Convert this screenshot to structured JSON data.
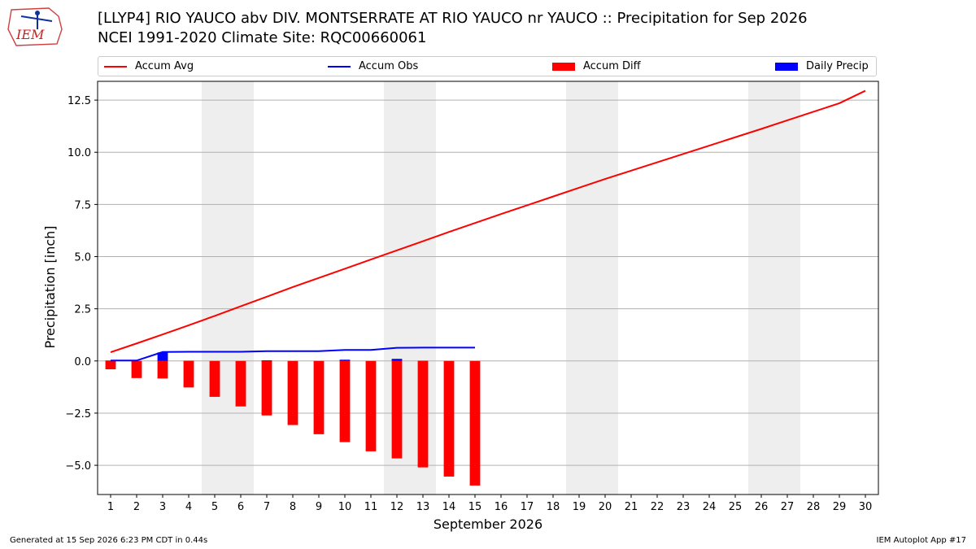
{
  "title_line1": "[LLYP4] RIO YAUCO abv DIV. MONTSERRATE  AT RIO YAUCO nr YAUCO :: Precipitation for Sep 2026",
  "title_line2": "NCEI 1991-2020 Climate Site: RQC00660061",
  "logo_text": "IEM",
  "footer_left": "Generated at 15 Sep 2026 6:23 PM CDT in 0.44s",
  "footer_right": "IEM Autoplot App #17",
  "chart_data": {
    "type": "bar",
    "xlabel": "September 2026",
    "ylabel": "Precipitation [inch]",
    "xlim": [
      0.5,
      30.5
    ],
    "ylim": [
      -6.4,
      13.4
    ],
    "y_ticks": [
      -5.0,
      -2.5,
      0.0,
      2.5,
      5.0,
      7.5,
      10.0,
      12.5
    ],
    "y_tick_labels": [
      "−5.0",
      "−2.5",
      "0.0",
      "2.5",
      "5.0",
      "7.5",
      "10.0",
      "12.5"
    ],
    "x_ticks": [
      1,
      2,
      3,
      4,
      5,
      6,
      7,
      8,
      9,
      10,
      11,
      12,
      13,
      14,
      15,
      16,
      17,
      18,
      19,
      20,
      21,
      22,
      23,
      24,
      25,
      26,
      27,
      28,
      29,
      30
    ],
    "grid": "horizontal",
    "legend_position": "top",
    "weekend_bands": [
      [
        5,
        6
      ],
      [
        12,
        13
      ],
      [
        19,
        20
      ],
      [
        26,
        27
      ]
    ],
    "colors": {
      "accum_avg": "#ff0000",
      "accum_obs": "#0000ff",
      "accum_diff": "#ff0000",
      "daily_precip": "#0000ff",
      "weekend": "#eeeeee"
    },
    "legend": [
      {
        "key": "accum_avg",
        "label": "Accum Avg",
        "kind": "line"
      },
      {
        "key": "accum_obs",
        "label": "Accum Obs",
        "kind": "line"
      },
      {
        "key": "accum_diff",
        "label": "Accum Diff",
        "kind": "bar"
      },
      {
        "key": "daily_precip",
        "label": "Daily Precip",
        "kind": "bar"
      }
    ],
    "series": [
      {
        "name": "Accum Avg",
        "x": [
          1,
          2,
          3,
          4,
          5,
          6,
          7,
          8,
          9,
          10,
          11,
          12,
          13,
          14,
          15,
          16,
          17,
          18,
          19,
          20,
          21,
          22,
          23,
          24,
          25,
          26,
          27,
          28,
          29,
          30
        ],
        "values": [
          0.42,
          0.84,
          1.27,
          1.71,
          2.16,
          2.62,
          3.08,
          3.54,
          3.98,
          4.42,
          4.86,
          5.3,
          5.74,
          6.18,
          6.61,
          7.04,
          7.46,
          7.88,
          8.3,
          8.72,
          9.12,
          9.52,
          9.92,
          10.32,
          10.72,
          11.12,
          11.53,
          11.94,
          12.35,
          12.95
        ]
      },
      {
        "name": "Accum Obs",
        "x": [
          1,
          2,
          3,
          4,
          5,
          6,
          7,
          8,
          9,
          10,
          11,
          12,
          13,
          14,
          15
        ],
        "values": [
          0.02,
          0.02,
          0.43,
          0.44,
          0.44,
          0.44,
          0.47,
          0.47,
          0.47,
          0.53,
          0.53,
          0.63,
          0.64,
          0.64,
          0.64
        ]
      },
      {
        "name": "Accum Diff",
        "x": [
          1,
          2,
          3,
          4,
          5,
          6,
          7,
          8,
          9,
          10,
          11,
          12,
          13,
          14,
          15
        ],
        "values": [
          -0.4,
          -0.82,
          -0.84,
          -1.27,
          -1.72,
          -2.18,
          -2.61,
          -3.07,
          -3.51,
          -3.89,
          -4.33,
          -4.67,
          -5.1,
          -5.54,
          -5.97
        ]
      },
      {
        "name": "Daily Precip",
        "x": [
          1,
          2,
          3,
          4,
          5,
          6,
          7,
          8,
          9,
          10,
          11,
          12,
          13,
          14,
          15
        ],
        "values": [
          0.02,
          0.0,
          0.41,
          0.01,
          0.0,
          0.0,
          0.03,
          0.0,
          0.0,
          0.06,
          0.0,
          0.1,
          0.01,
          0.0,
          0.0
        ]
      }
    ]
  }
}
